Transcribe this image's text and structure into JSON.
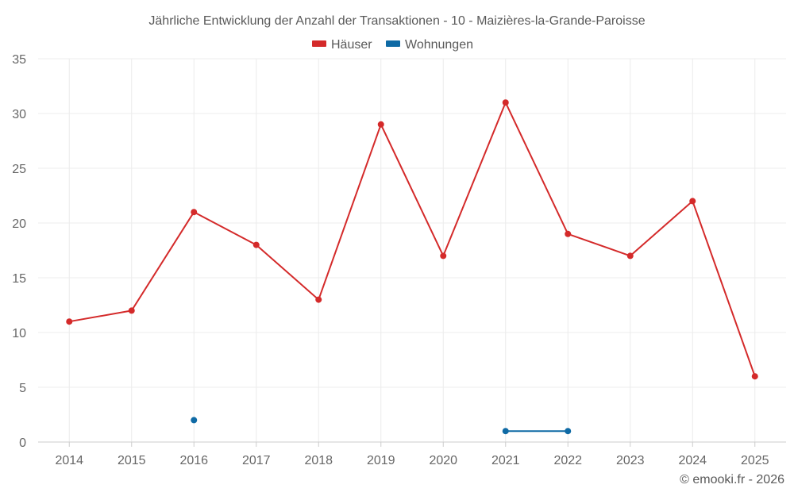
{
  "colors": {
    "haeuser": "#d42a2a",
    "wohnungen": "#0f6aa5"
  },
  "chart_data": {
    "type": "line",
    "title": "Jährliche Entwicklung der Anzahl der Transaktionen - 10 - Maizières-la-Grande-Paroisse",
    "categories": [
      "2014",
      "2015",
      "2016",
      "2017",
      "2018",
      "2019",
      "2020",
      "2021",
      "2022",
      "2023",
      "2024",
      "2025"
    ],
    "ylim": [
      0,
      35
    ],
    "yticks": [
      0,
      5,
      10,
      15,
      20,
      25,
      30,
      35
    ],
    "grid": true,
    "legend_position": "top-center",
    "series": [
      {
        "name": "Häuser",
        "color": "#d42a2a",
        "values": [
          11,
          12,
          21,
          18,
          13,
          29,
          17,
          31,
          19,
          17,
          22,
          6
        ]
      },
      {
        "name": "Wohnungen",
        "color": "#0f6aa5",
        "values": [
          null,
          null,
          2,
          null,
          null,
          null,
          null,
          1,
          1,
          null,
          null,
          null
        ]
      }
    ],
    "credit": "© emooki.fr - 2026"
  }
}
